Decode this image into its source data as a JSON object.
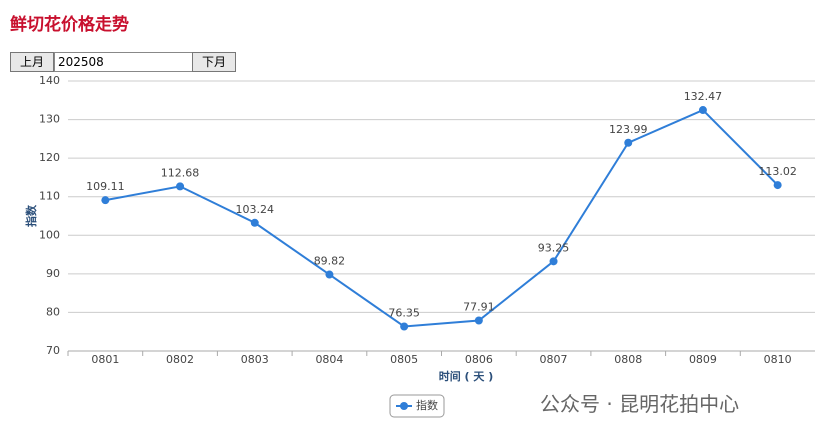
{
  "header": {
    "title": "鲜切花价格走势"
  },
  "controls": {
    "prev": "上月",
    "month": "202508",
    "next": "下月"
  },
  "chart_data": {
    "type": "line",
    "x_label": "时间 ( 天 )",
    "y_label": "指数",
    "categories": [
      "0801",
      "0802",
      "0803",
      "0804",
      "0805",
      "0806",
      "0807",
      "0808",
      "0809",
      "0810"
    ],
    "series": [
      {
        "name": "指数",
        "color": "#2f7ed8",
        "values": [
          109.11,
          112.68,
          103.24,
          89.82,
          76.35,
          77.91,
          93.25,
          123.99,
          132.47,
          113.02
        ]
      }
    ],
    "ylim": [
      70,
      140
    ],
    "yticks": [
      70,
      80,
      90,
      100,
      110,
      120,
      130,
      140
    ],
    "grid": true,
    "legend": "bottom"
  },
  "watermark": "公众号 · 昆明花拍中心"
}
